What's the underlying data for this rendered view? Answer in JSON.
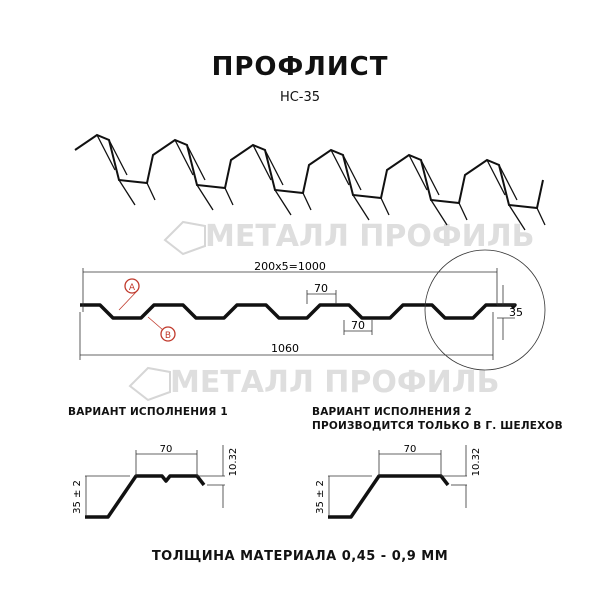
{
  "header": {
    "title": "ПРОФЛИСТ",
    "subtitle": "НС-35"
  },
  "watermark": {
    "text": "МЕТАЛЛ ПРОФИЛЬ"
  },
  "profile": {
    "dim_pitch": "200x5=1000",
    "dim_total": "1060",
    "dim_top": "70",
    "dim_bottom": "70",
    "dim_height": "35",
    "label_a": "A",
    "label_b": "B",
    "marker_color": "#c0392b"
  },
  "variant1": {
    "caption": "ВАРИАНТ ИСПОЛНЕНИЯ 1",
    "dim_width": "70",
    "dim_height": "35 ± 2",
    "dim_step": "10.32"
  },
  "variant2": {
    "caption_line1": "ВАРИАНТ ИСПОЛНЕНИЯ 2",
    "caption_line2": "ПРОИЗВОДИТСЯ ТОЛЬКО В Г. ШЕЛЕХОВ",
    "dim_width": "70",
    "dim_height": "35 ± 2",
    "dim_step": "10.32"
  },
  "footer": {
    "text": "ТОЛЩИНА МАТЕРИАЛА 0,45 - 0,9 ММ"
  }
}
